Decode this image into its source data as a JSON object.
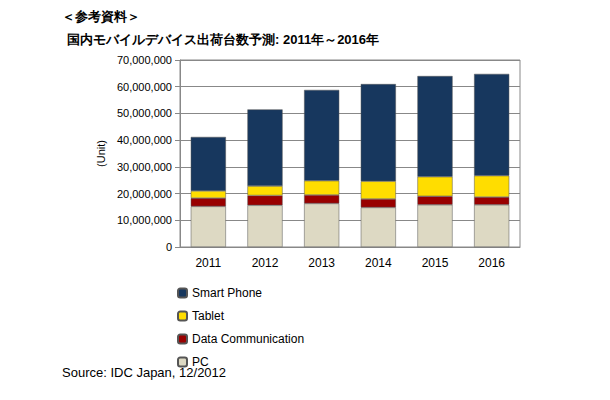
{
  "chart_data": {
    "type": "bar",
    "title": "国内モバイルデバイス出荷台数予測: 2011年～2016年",
    "annotations": [
      "＜参考資料＞",
      "Source: IDC Japan, 12/2012"
    ],
    "y_label": "(Unit)",
    "categories": [
      "2011",
      "2012",
      "2013",
      "2014",
      "2015",
      "2016"
    ],
    "series": [
      {
        "name": "PC",
        "color": "#ddd9c3",
        "values": [
          15200000,
          15600000,
          16300000,
          14800000,
          15800000,
          15800000
        ]
      },
      {
        "name": "Data Communication",
        "color": "#990000",
        "values": [
          3100000,
          3700000,
          3200000,
          3200000,
          3200000,
          2900000
        ]
      },
      {
        "name": "Tablet",
        "color": "#ffdd00",
        "values": [
          2700000,
          3500000,
          5300000,
          6600000,
          7300000,
          8000000
        ]
      },
      {
        "name": "Smart Phone",
        "color": "#17375e",
        "values": [
          20200000,
          28700000,
          34000000,
          36400000,
          37700000,
          38100000
        ]
      }
    ],
    "ylim": [
      0,
      70000000
    ],
    "yticks": [
      0,
      {
        "value": 10000000,
        "label": "10,000,000"
      },
      {
        "value": 20000000,
        "label": "20,000,000"
      },
      {
        "value": 30000000,
        "label": "30,000,000"
      },
      {
        "value": 40000000,
        "label": "40,000,000"
      },
      {
        "value": 50000000,
        "label": "50,000,000"
      },
      {
        "value": 60000000,
        "label": "60,000,000"
      },
      {
        "value": 70000000,
        "label": "70,000,000"
      }
    ],
    "stacked": true,
    "grid": true,
    "legend": "bottom"
  }
}
